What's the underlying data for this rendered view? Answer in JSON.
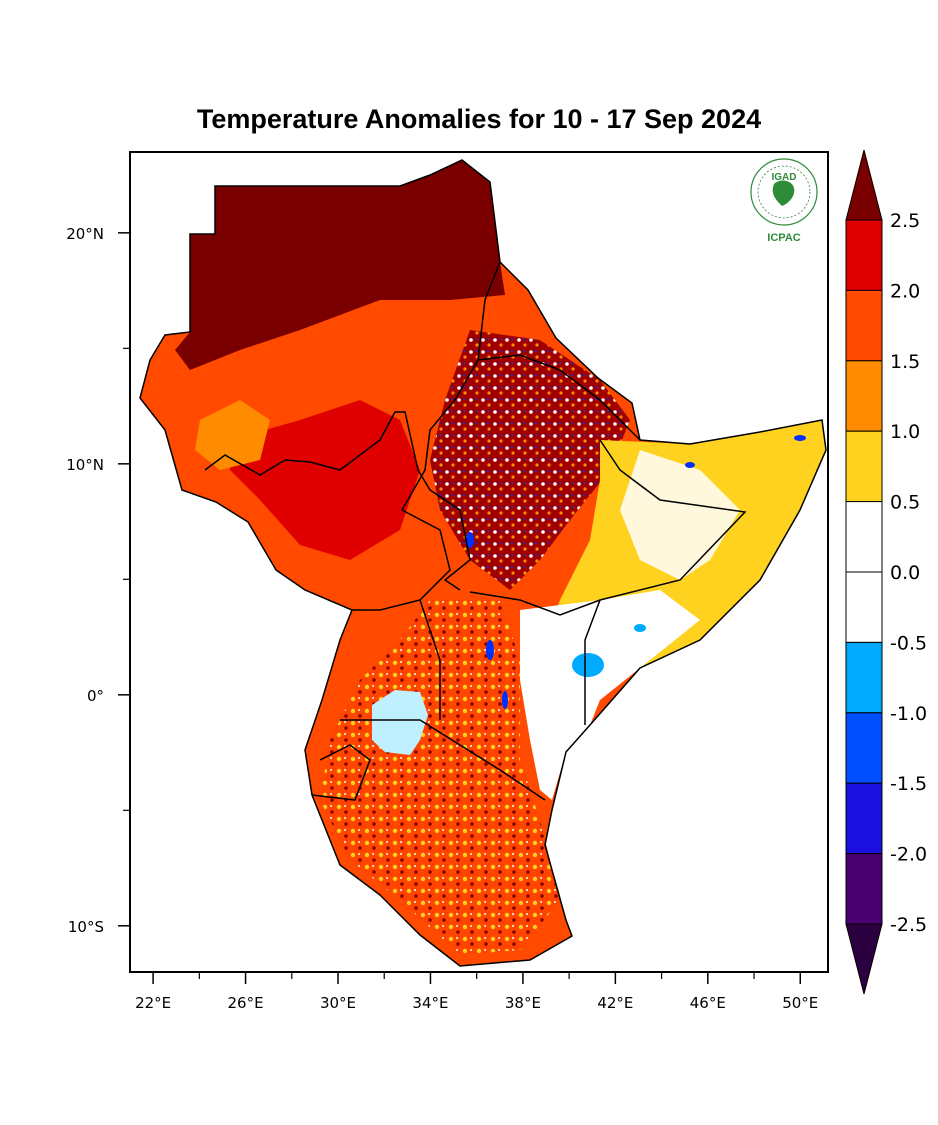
{
  "title": "Temperature Anomalies for 10 - 17 Sep 2024",
  "logo": {
    "top_text": "IGAD",
    "bottom_text": "ICPAC",
    "icon": "igad-icpac-logo",
    "color": "#2e8b3a"
  },
  "axes": {
    "x_ticks": [
      {
        "lon": 22,
        "label": "22°E"
      },
      {
        "lon": 26,
        "label": "26°E"
      },
      {
        "lon": 30,
        "label": "30°E"
      },
      {
        "lon": 34,
        "label": "34°E"
      },
      {
        "lon": 38,
        "label": "38°E"
      },
      {
        "lon": 42,
        "label": "42°E"
      },
      {
        "lon": 46,
        "label": "46°E"
      },
      {
        "lon": 50,
        "label": "50°E"
      }
    ],
    "x_minor": [
      24,
      28,
      32,
      36,
      40,
      44,
      48
    ],
    "y_ticks": [
      {
        "lat": 20,
        "label": "20°N"
      },
      {
        "lat": 10,
        "label": "10°N"
      },
      {
        "lat": 0,
        "label": "0°"
      },
      {
        "lat": -10,
        "label": "10°S"
      }
    ],
    "y_minor": [
      15,
      5,
      -5
    ],
    "lon_range": [
      21,
      51.2
    ],
    "lat_range": [
      -12,
      23.5
    ]
  },
  "colorbar": {
    "labels": [
      "2.5",
      "2.0",
      "1.5",
      "1.0",
      "0.5",
      "0.0",
      "-0.5",
      "-1.0",
      "-1.5",
      "-2.0",
      "-2.5"
    ],
    "top_triangle": "#7a0000",
    "bottom_triangle": "#2a0040",
    "bins": [
      "#e00000",
      "#ff4a00",
      "#ff8c00",
      "#ffd21f",
      "#ffffff",
      "#ffffff",
      "#00aaff",
      "#0050ff",
      "#1a10e0",
      "#4a0070"
    ]
  },
  "legend_colors": {
    "extreme_warm": "#7a0000",
    "warm_2": "#e00000",
    "warm_15": "#ff4a00",
    "warm_1": "#ff8c00",
    "warm_05": "#ffd21f",
    "neutral": "#ffffff",
    "lake": "#bff0ff",
    "cool": "#00aaff"
  }
}
